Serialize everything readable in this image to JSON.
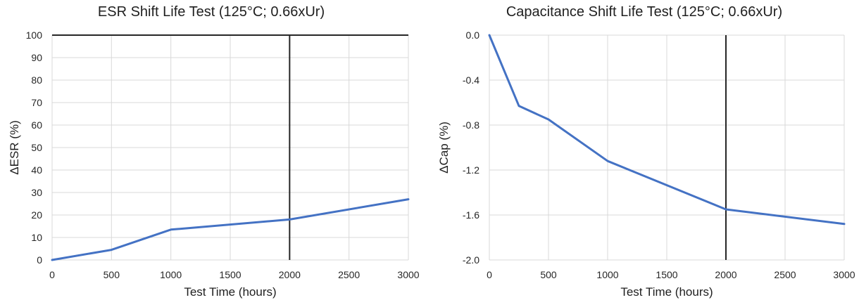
{
  "chart_data": [
    {
      "type": "line",
      "title": "ESR Shift Life Test (125°C; 0.66xUr)",
      "xlabel": "Test Time (hours)",
      "ylabel": "ΔESR (%)",
      "xlim": [
        0,
        3000
      ],
      "ylim": [
        0,
        100
      ],
      "xticks": [
        "0",
        "500",
        "1000",
        "1500",
        "2000",
        "2500",
        "3000"
      ],
      "yticks": [
        "0",
        "10",
        "20",
        "30",
        "40",
        "50",
        "60",
        "70",
        "80",
        "90",
        "100"
      ],
      "grid": true,
      "legend": "none",
      "line_color": "#4472c4",
      "marker_color": "#262626",
      "reference_lines": {
        "vertical_x": 2000,
        "horizontal_y": 100
      },
      "series": [
        {
          "x": [
            0,
            500,
            1000,
            2000,
            3000
          ],
          "y": [
            0,
            4.5,
            13.5,
            18,
            27
          ]
        }
      ]
    },
    {
      "type": "line",
      "title": "Capacitance Shift Life Test (125°C; 0.66xUr)",
      "xlabel": "Test Time (hours)",
      "ylabel": "ΔCap (%)",
      "xlim": [
        0,
        3000
      ],
      "ylim": [
        -2.0,
        0.0
      ],
      "xticks": [
        "0",
        "500",
        "1000",
        "1500",
        "2000",
        "2500",
        "3000"
      ],
      "yticks": [
        "-2.0",
        "-1.6",
        "-1.2",
        "-0.8",
        "-0.4",
        "0.0"
      ],
      "grid": true,
      "legend": "none",
      "line_color": "#4472c4",
      "marker_color": "#262626",
      "reference_lines": {
        "vertical_x": 2000
      },
      "series": [
        {
          "x": [
            0,
            250,
            500,
            1000,
            2000,
            3000
          ],
          "y": [
            0,
            -0.63,
            -0.75,
            -1.12,
            -1.55,
            -1.68
          ]
        }
      ]
    }
  ]
}
